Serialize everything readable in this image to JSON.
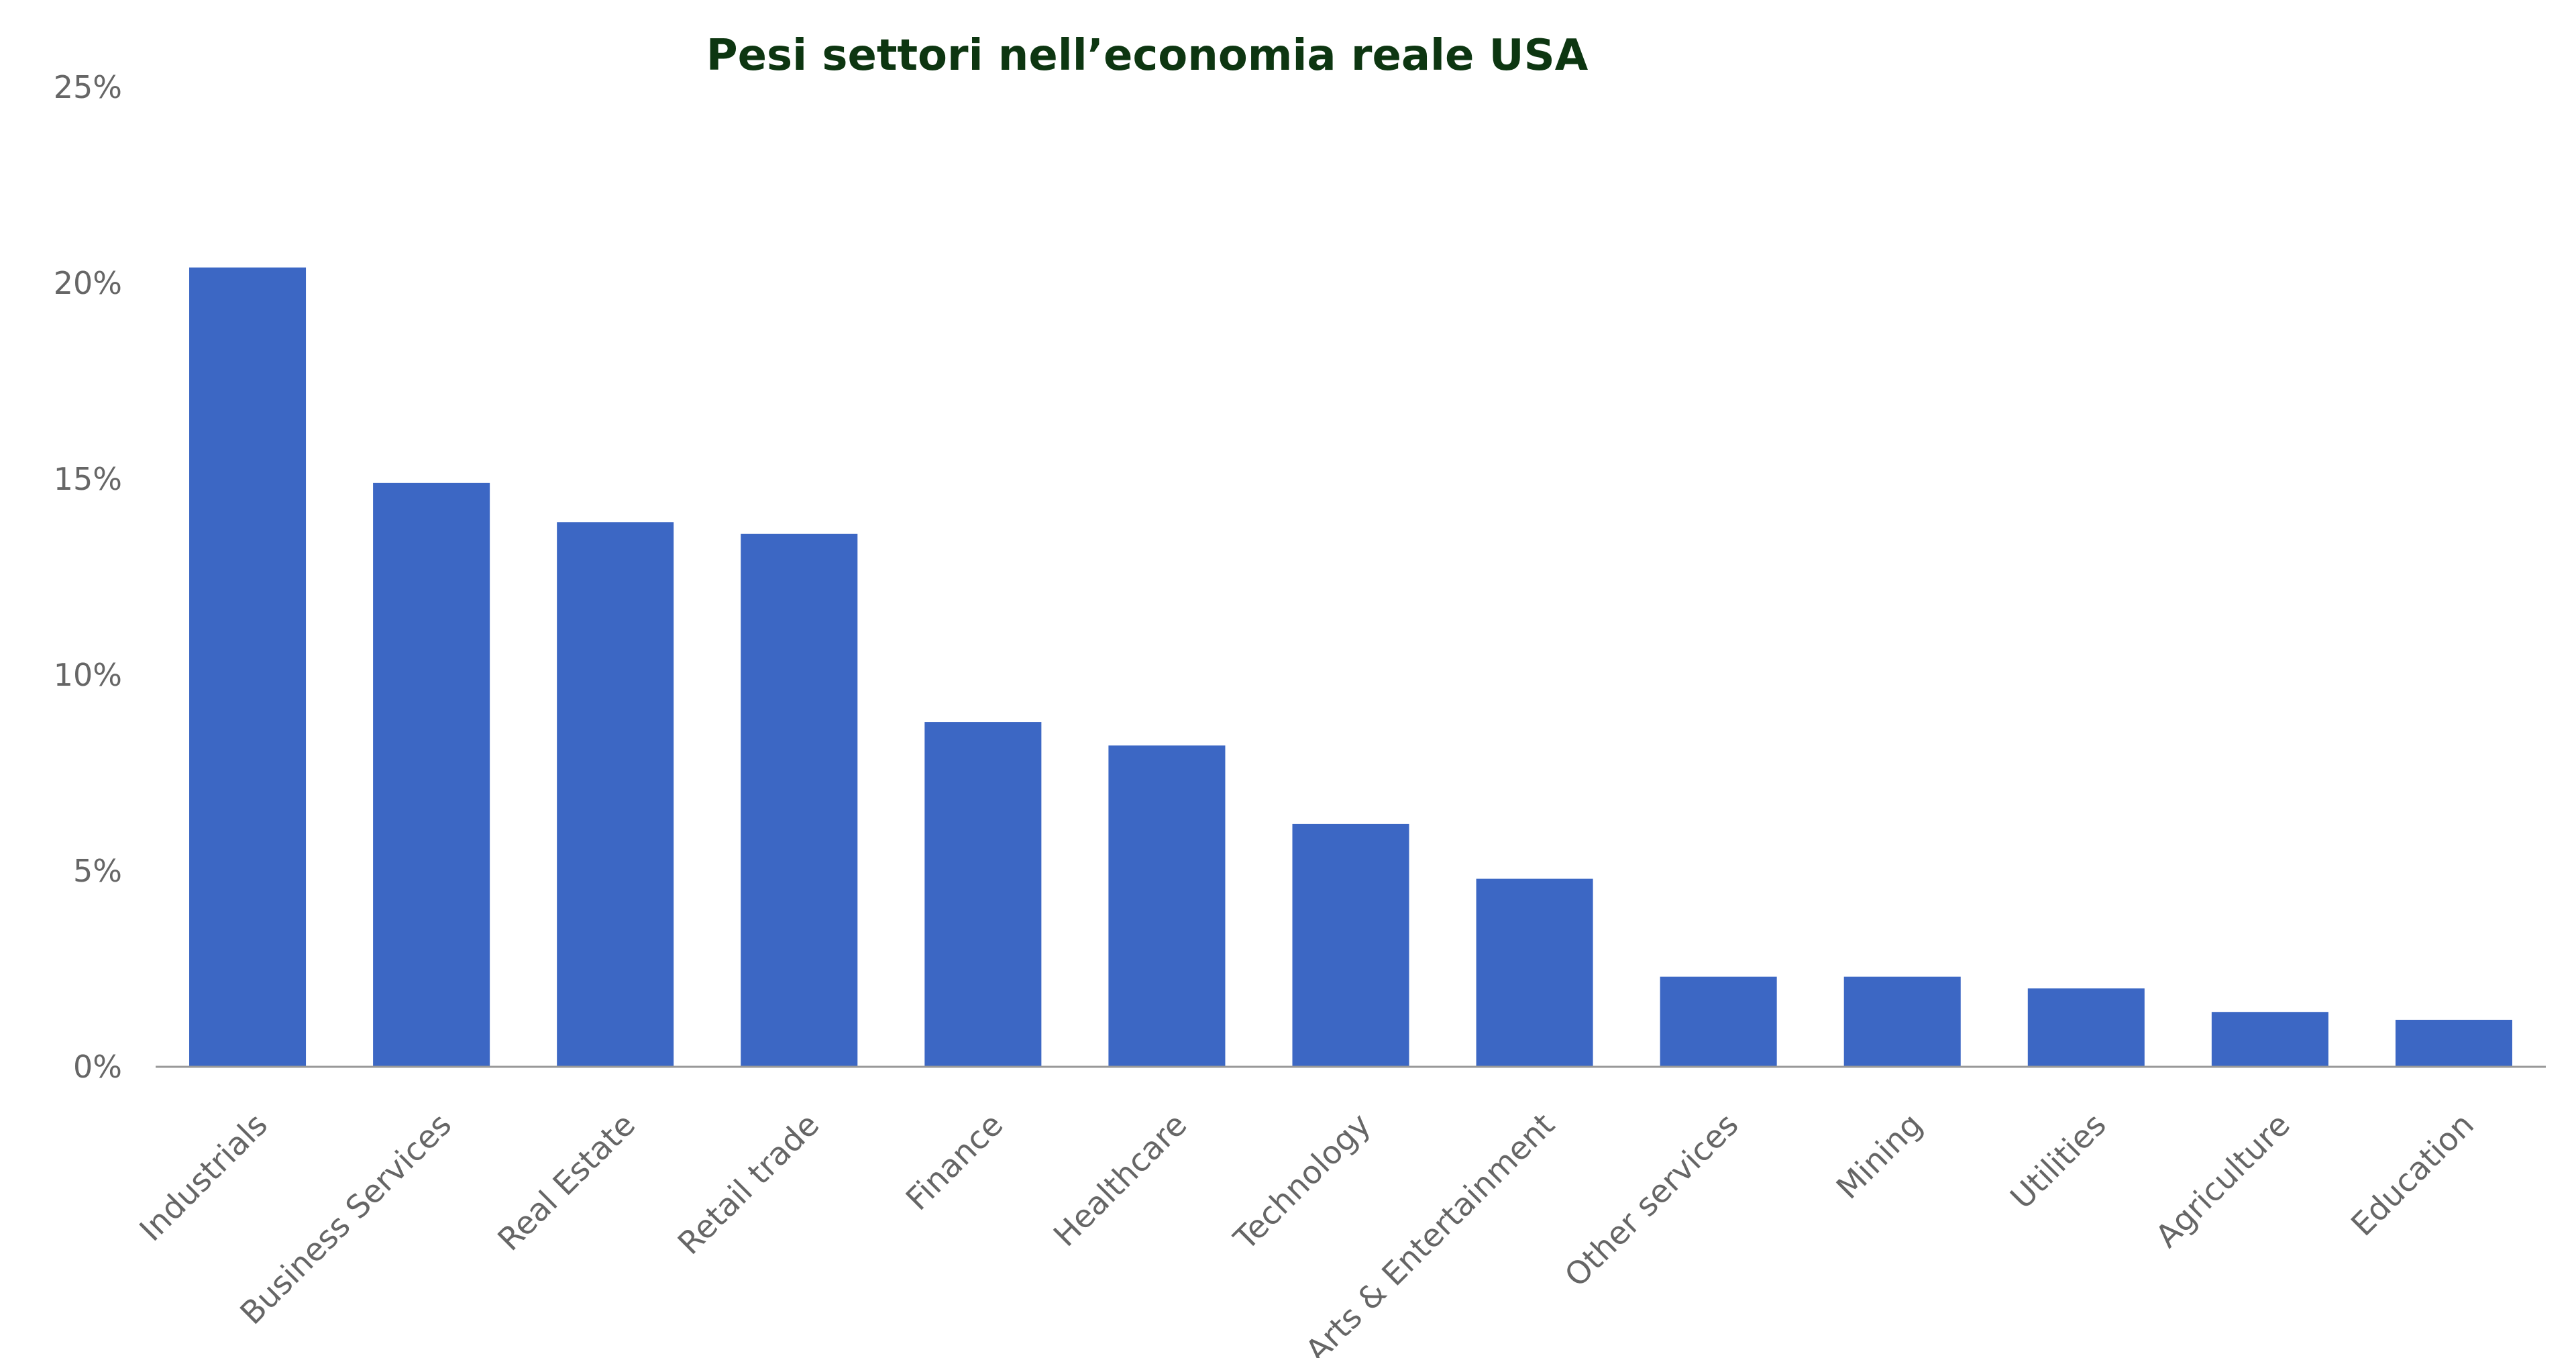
{
  "chart_data": {
    "type": "bar",
    "title": "Pesi settori nell’economia reale USA",
    "categories": [
      "Industrials",
      "Business Services",
      "Real Estate",
      "Retail trade",
      "Finance",
      "Healthcare",
      "Technology",
      "Arts & Entertainment",
      "Other services",
      "Mining",
      "Utilities",
      "Agriculture",
      "Education"
    ],
    "values": [
      20.4,
      14.9,
      13.9,
      13.6,
      8.8,
      8.2,
      6.2,
      4.8,
      2.3,
      2.3,
      2.0,
      1.4,
      1.2
    ],
    "yticks": [
      "0%",
      "5%",
      "10%",
      "15%",
      "20%",
      "25%"
    ],
    "ylim": [
      0,
      25
    ],
    "xlabel": "",
    "ylabel": "",
    "grid": false,
    "legend": "none",
    "colors": {
      "bar": "#3c67c4",
      "title": "#0d3611",
      "axis": "#999999",
      "text": "#666666"
    }
  }
}
